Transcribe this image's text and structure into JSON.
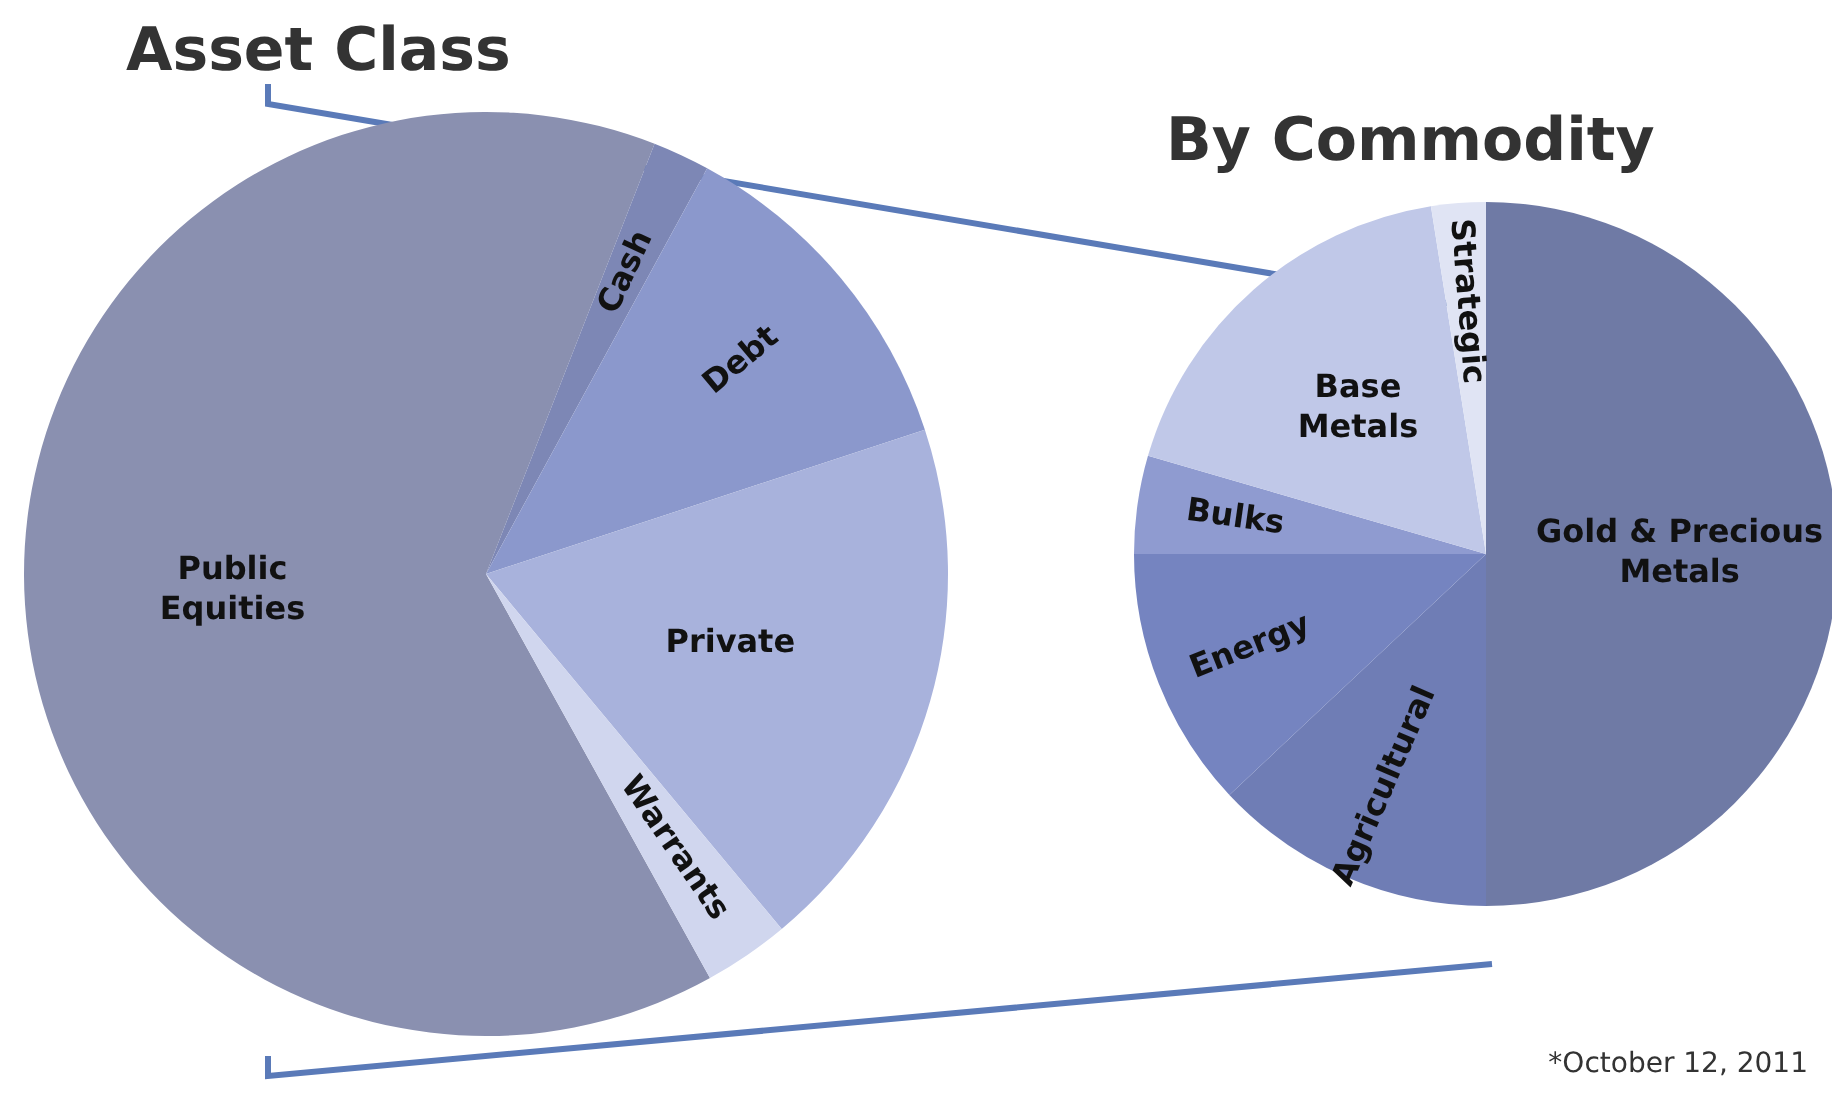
{
  "chart_data": [
    {
      "type": "pie",
      "title": "Asset Class",
      "categories": [
        "Public Equities",
        "Cash",
        "Debt",
        "Private",
        "Warrants"
      ],
      "values": [
        64,
        2,
        12,
        19,
        3
      ],
      "colors": [
        "#8a90b0",
        "#7d87b5",
        "#8b98cc",
        "#a8b2dc",
        "#d0d6ee"
      ],
      "legend": false
    },
    {
      "type": "pie",
      "title": "By Commodity",
      "categories": [
        "Gold & Precious Metals",
        "Agricultural",
        "Energy",
        "Bulks",
        "Base Metals",
        "Strategic"
      ],
      "values": [
        50,
        13,
        12,
        4.5,
        18,
        2.5
      ],
      "colors": [
        "#6f7aa5",
        "#6f7db5",
        "#7584c0",
        "#8f9bd0",
        "#c0c8e8",
        "#e0e4f4"
      ],
      "legend": false,
      "annotations": [
        "*October 12, 2011"
      ]
    }
  ]
}
